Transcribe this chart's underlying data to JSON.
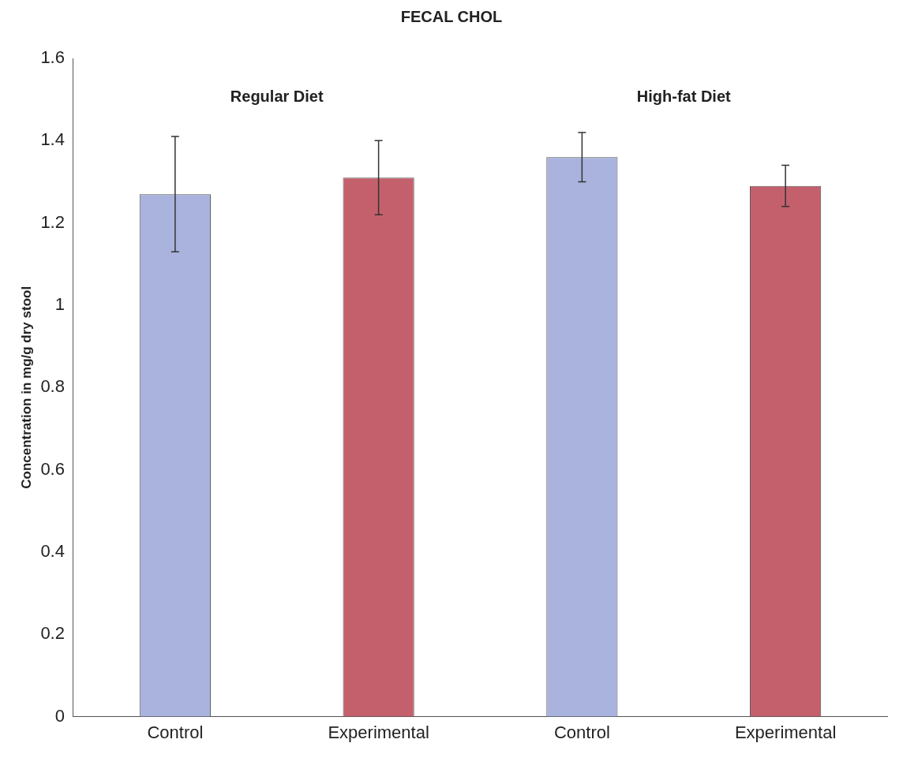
{
  "chart_data": {
    "type": "bar",
    "title": "FECAL CHOL",
    "ylabel": "Concentration in mg/g dry stool",
    "categories": [
      "Control",
      "Experimental",
      "Control",
      "Experimental"
    ],
    "values": [
      1.27,
      1.31,
      1.36,
      1.29
    ],
    "errors": [
      0.14,
      0.09,
      0.06,
      0.05
    ],
    "colors": [
      "#a9b3de",
      "#c4606c",
      "#a9b3de",
      "#c4606c"
    ],
    "ylim": [
      0,
      1.6
    ],
    "yticks": [
      0,
      0.2,
      0.4,
      0.6,
      0.8,
      1,
      1.2,
      1.4,
      1.6
    ],
    "annotations": [
      "Regular Diet",
      "High-fat Diet"
    ],
    "grid": false,
    "legend": false
  }
}
